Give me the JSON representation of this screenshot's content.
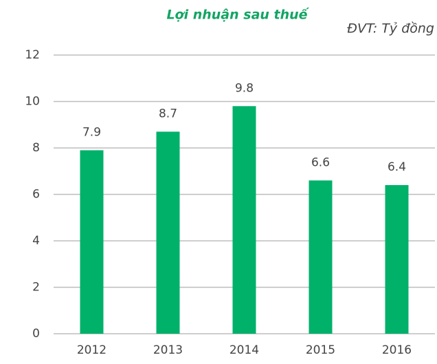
{
  "chart_data": {
    "type": "bar",
    "title": "Lợi nhuận sau thuế",
    "subtitle": "ĐVT: Tỷ đồng",
    "categories": [
      "2012",
      "2013",
      "2014",
      "2015",
      "2016"
    ],
    "values": [
      7.9,
      8.7,
      9.8,
      6.6,
      6.4
    ],
    "color": "#00b16a",
    "ylim": [
      0,
      12
    ],
    "yticks": [
      0,
      2,
      4,
      6,
      8,
      10,
      12
    ],
    "grid": true
  }
}
